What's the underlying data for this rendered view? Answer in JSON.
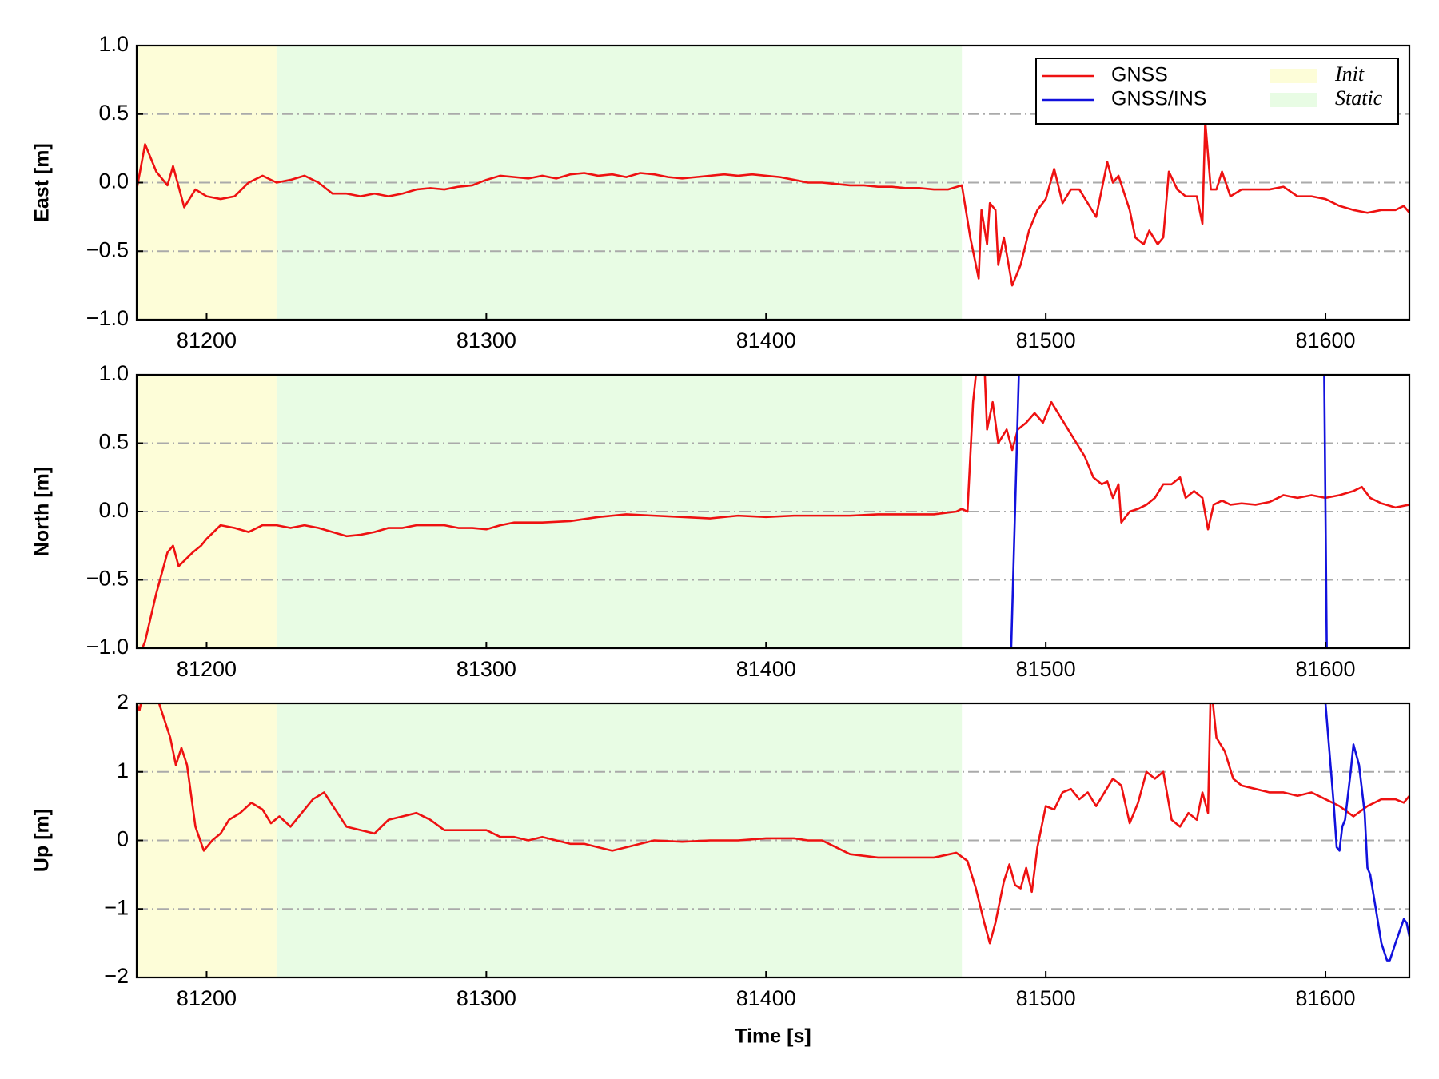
{
  "x_label": "Time [s]",
  "legend": {
    "corner": "upper right",
    "entries": [
      {
        "name": "GNSS",
        "color": "#ee1111"
      },
      {
        "name": "GNSS/INS",
        "color": "#1111dd"
      }
    ],
    "regions": [
      {
        "name": "Init",
        "start": 81175,
        "end": 81225,
        "color": "#fdfdd8"
      },
      {
        "name": "Static",
        "start": 81225,
        "end": 81470,
        "color": "#e8fce4"
      }
    ]
  },
  "chart_data": [
    {
      "type": "line",
      "y_label": "East [m]",
      "grid": true,
      "legend": true,
      "xlim": [
        81175,
        81630
      ],
      "xticks": [
        81200,
        81300,
        81400,
        81500,
        81600
      ],
      "ylim": [
        -1.0,
        1.0
      ],
      "yticks": [
        {
          "value": -1.0,
          "label": "−1.0"
        },
        {
          "value": -0.5,
          "label": "−0.5"
        },
        {
          "value": 0.0,
          "label": "0.0"
        },
        {
          "value": 0.5,
          "label": "0.5"
        },
        {
          "value": 1.0,
          "label": "1.0"
        }
      ],
      "series": [
        {
          "name": "GNSS",
          "color": "#ee1111",
          "x": [
            81175,
            81178,
            81182,
            81186,
            81188,
            81192,
            81196,
            81200,
            81205,
            81210,
            81215,
            81220,
            81225,
            81230,
            81235,
            81240,
            81245,
            81250,
            81255,
            81260,
            81265,
            81270,
            81275,
            81280,
            81285,
            81290,
            81295,
            81300,
            81305,
            81310,
            81315,
            81320,
            81325,
            81330,
            81335,
            81340,
            81345,
            81350,
            81355,
            81360,
            81365,
            81370,
            81375,
            81380,
            81385,
            81390,
            81395,
            81400,
            81405,
            81410,
            81415,
            81420,
            81425,
            81430,
            81435,
            81440,
            81445,
            81450,
            81455,
            81460,
            81465,
            81470,
            81473,
            81476,
            81477,
            81479,
            81480,
            81482,
            81483,
            81485,
            81488,
            81491,
            81494,
            81497,
            81500,
            81503,
            81506,
            81509,
            81512,
            81515,
            81518,
            81520,
            81522,
            81524,
            81526,
            81530,
            81532,
            81535,
            81537,
            81540,
            81542,
            81544,
            81547,
            81550,
            81554,
            81556,
            81557,
            81559,
            81561,
            81563,
            81566,
            81570,
            81575,
            81580,
            81585,
            81590,
            81595,
            81600,
            81605,
            81610,
            81615,
            81620,
            81625,
            81628,
            81630
          ],
          "values": [
            -0.05,
            0.28,
            0.08,
            -0.02,
            0.12,
            -0.18,
            -0.05,
            -0.1,
            -0.12,
            -0.1,
            0.0,
            0.05,
            0.0,
            0.02,
            0.05,
            0.0,
            -0.08,
            -0.08,
            -0.1,
            -0.08,
            -0.1,
            -0.08,
            -0.05,
            -0.04,
            -0.05,
            -0.03,
            -0.02,
            0.02,
            0.05,
            0.04,
            0.03,
            0.05,
            0.03,
            0.06,
            0.07,
            0.05,
            0.06,
            0.04,
            0.07,
            0.06,
            0.04,
            0.03,
            0.04,
            0.05,
            0.06,
            0.05,
            0.06,
            0.05,
            0.04,
            0.02,
            0.0,
            0.0,
            -0.01,
            -0.02,
            -0.02,
            -0.03,
            -0.03,
            -0.04,
            -0.04,
            -0.05,
            -0.05,
            -0.02,
            -0.4,
            -0.7,
            -0.2,
            -0.45,
            -0.15,
            -0.2,
            -0.6,
            -0.4,
            -0.75,
            -0.6,
            -0.35,
            -0.2,
            -0.12,
            0.1,
            -0.15,
            -0.05,
            -0.05,
            -0.15,
            -0.25,
            -0.05,
            0.15,
            0.0,
            0.05,
            -0.2,
            -0.4,
            -0.45,
            -0.35,
            -0.45,
            -0.4,
            0.08,
            -0.05,
            -0.1,
            -0.1,
            -0.3,
            0.45,
            -0.05,
            -0.05,
            0.08,
            -0.1,
            -0.05,
            -0.05,
            -0.05,
            -0.03,
            -0.1,
            -0.1,
            -0.12,
            -0.17,
            -0.2,
            -0.22,
            -0.2,
            -0.2,
            -0.17,
            -0.22
          ]
        }
      ]
    },
    {
      "type": "line",
      "y_label": "North [m]",
      "grid": true,
      "legend": false,
      "xlim": [
        81175,
        81630
      ],
      "xticks": [
        81200,
        81300,
        81400,
        81500,
        81600
      ],
      "ylim": [
        -1.0,
        1.0
      ],
      "yticks": [
        {
          "value": -1.0,
          "label": "−1.0"
        },
        {
          "value": -0.5,
          "label": "−0.5"
        },
        {
          "value": 0.0,
          "label": "0.0"
        },
        {
          "value": 0.5,
          "label": "0.5"
        },
        {
          "value": 1.0,
          "label": "1.0"
        }
      ],
      "series": [
        {
          "name": "GNSS",
          "color": "#ee1111",
          "x": [
            81175,
            81178,
            81182,
            81186,
            81188,
            81190,
            81195,
            81198,
            81200,
            81205,
            81210,
            81215,
            81220,
            81225,
            81230,
            81235,
            81240,
            81245,
            81250,
            81255,
            81260,
            81265,
            81270,
            81275,
            81280,
            81285,
            81290,
            81295,
            81300,
            81305,
            81310,
            81320,
            81330,
            81340,
            81350,
            81360,
            81370,
            81380,
            81390,
            81400,
            81410,
            81420,
            81430,
            81440,
            81450,
            81460,
            81468,
            81470,
            81472,
            81474,
            81476,
            81478,
            81479,
            81481,
            81483,
            81486,
            81488,
            81490,
            81493,
            81496,
            81499,
            81502,
            81505,
            81508,
            81511,
            81514,
            81517,
            81520,
            81522,
            81524,
            81526,
            81527,
            81530,
            81533,
            81536,
            81539,
            81542,
            81545,
            81548,
            81550,
            81553,
            81556,
            81558,
            81560,
            81563,
            81566,
            81570,
            81575,
            81580,
            81585,
            81590,
            81595,
            81600,
            81605,
            81610,
            81613,
            81616,
            81620,
            81625,
            81630
          ],
          "values": [
            -1.1,
            -0.95,
            -0.6,
            -0.3,
            -0.25,
            -0.4,
            -0.3,
            -0.25,
            -0.2,
            -0.1,
            -0.12,
            -0.15,
            -0.1,
            -0.1,
            -0.12,
            -0.1,
            -0.12,
            -0.15,
            -0.18,
            -0.17,
            -0.15,
            -0.12,
            -0.12,
            -0.1,
            -0.1,
            -0.1,
            -0.12,
            -0.12,
            -0.13,
            -0.1,
            -0.08,
            -0.08,
            -0.07,
            -0.04,
            -0.02,
            -0.03,
            -0.04,
            -0.05,
            -0.03,
            -0.04,
            -0.03,
            -0.03,
            -0.03,
            -0.02,
            -0.02,
            -0.02,
            0.0,
            0.02,
            0.0,
            0.8,
            1.2,
            1.1,
            0.6,
            0.8,
            0.5,
            0.6,
            0.45,
            0.6,
            0.65,
            0.72,
            0.65,
            0.8,
            0.7,
            0.6,
            0.5,
            0.4,
            0.25,
            0.2,
            0.22,
            0.1,
            0.2,
            -0.08,
            0.0,
            0.02,
            0.05,
            0.1,
            0.2,
            0.2,
            0.25,
            0.1,
            0.15,
            0.1,
            -0.13,
            0.05,
            0.08,
            0.05,
            0.06,
            0.05,
            0.07,
            0.12,
            0.1,
            0.12,
            0.1,
            0.12,
            0.15,
            0.18,
            0.1,
            0.06,
            0.03,
            0.05
          ]
        },
        {
          "name": "GNSS/INS",
          "color": "#1111dd",
          "x": [
            81487.5,
            81490.5,
            81545,
            81599.5,
            81600.5
          ],
          "values": [
            -1.1,
            1.1,
            null,
            1.1,
            -1.1
          ]
        }
      ]
    },
    {
      "type": "line",
      "y_label": "Up [m]",
      "grid": true,
      "legend": false,
      "xlim": [
        81175,
        81630
      ],
      "xticks": [
        81200,
        81300,
        81400,
        81500,
        81600
      ],
      "ylim": [
        -2,
        2
      ],
      "yticks": [
        {
          "value": -2,
          "label": "−2"
        },
        {
          "value": -1,
          "label": "−1"
        },
        0,
        1,
        2
      ],
      "series": [
        {
          "name": "GNSS",
          "color": "#ee1111",
          "x": [
            81175,
            81176,
            81178,
            81183,
            81187,
            81189,
            81191,
            81193,
            81196,
            81199,
            81202,
            81205,
            81208,
            81212,
            81216,
            81220,
            81223,
            81226,
            81230,
            81234,
            81238,
            81242,
            81246,
            81250,
            81255,
            81260,
            81265,
            81270,
            81275,
            81280,
            81285,
            81290,
            81295,
            81300,
            81305,
            81310,
            81315,
            81320,
            81325,
            81330,
            81335,
            81340,
            81345,
            81350,
            81355,
            81360,
            81370,
            81380,
            81390,
            81400,
            81410,
            81415,
            81420,
            81425,
            81430,
            81440,
            81450,
            81460,
            81468,
            81472,
            81475,
            81478,
            81480,
            81482,
            81485,
            81487,
            81489,
            81491,
            81493,
            81495,
            81497,
            81500,
            81503,
            81506,
            81509,
            81512,
            81515,
            81518,
            81521,
            81524,
            81527,
            81530,
            81533,
            81536,
            81539,
            81542,
            81545,
            81548,
            81551,
            81554,
            81556,
            81558,
            81559,
            81561,
            81564,
            81567,
            81570,
            81575,
            81580,
            81585,
            81590,
            81595,
            81600,
            81605,
            81610,
            81615,
            81620,
            81625,
            81628,
            81630
          ],
          "values": [
            2.0,
            1.9,
            2.3,
            2.0,
            1.5,
            1.1,
            1.35,
            1.1,
            0.2,
            -0.15,
            0.0,
            0.1,
            0.3,
            0.4,
            0.55,
            0.45,
            0.25,
            0.35,
            0.2,
            0.4,
            0.6,
            0.7,
            0.45,
            0.2,
            0.15,
            0.1,
            0.3,
            0.35,
            0.4,
            0.3,
            0.15,
            0.15,
            0.15,
            0.15,
            0.05,
            0.05,
            0.0,
            0.05,
            0.0,
            -0.05,
            -0.05,
            -0.1,
            -0.15,
            -0.1,
            -0.05,
            0.0,
            -0.02,
            0.0,
            0.0,
            0.03,
            0.03,
            0.0,
            0.0,
            -0.1,
            -0.2,
            -0.25,
            -0.25,
            -0.25,
            -0.18,
            -0.3,
            -0.7,
            -1.2,
            -1.5,
            -1.2,
            -0.6,
            -0.35,
            -0.65,
            -0.7,
            -0.4,
            -0.75,
            -0.1,
            0.5,
            0.45,
            0.7,
            0.75,
            0.6,
            0.7,
            0.5,
            0.7,
            0.9,
            0.8,
            0.25,
            0.55,
            1.0,
            0.9,
            1.0,
            0.3,
            0.2,
            0.4,
            0.3,
            0.7,
            0.4,
            2.3,
            1.5,
            1.3,
            0.9,
            0.8,
            0.75,
            0.7,
            0.7,
            0.65,
            0.7,
            0.6,
            0.5,
            0.35,
            0.5,
            0.6,
            0.6,
            0.55,
            0.65
          ]
        },
        {
          "name": "GNSS/INS",
          "color": "#1111dd",
          "x": [
            81600,
            81602,
            81603,
            81604,
            81605,
            81606,
            81607,
            81609,
            81610,
            81612,
            81614,
            81615,
            81616,
            81618,
            81620,
            81622,
            81623,
            81625,
            81628,
            81629,
            81630
          ],
          "values": [
            2.0,
            1.0,
            0.5,
            -0.1,
            -0.15,
            0.2,
            0.3,
            1.0,
            1.4,
            1.1,
            0.4,
            -0.4,
            -0.5,
            -1.0,
            -1.5,
            -1.75,
            -1.75,
            -1.5,
            -1.15,
            -1.2,
            -1.4
          ]
        }
      ]
    }
  ]
}
